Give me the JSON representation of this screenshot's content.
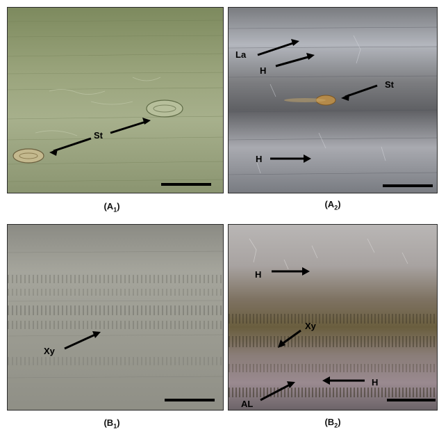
{
  "panels": {
    "A1": {
      "caption": {
        "letter": "A",
        "sub": "1"
      },
      "labels": {
        "st": "St"
      },
      "colors": {
        "base": "#8f9a72",
        "tint": "#a9b38a"
      }
    },
    "A2": {
      "caption": {
        "letter": "A",
        "sub": "2"
      },
      "labels": {
        "la": "La",
        "h1": "H",
        "st": "St",
        "h2": "H"
      },
      "colors": {
        "base": "#6f7176",
        "stoma": "#b48a4a"
      }
    },
    "B1": {
      "caption": {
        "letter": "B",
        "sub": "1"
      },
      "labels": {
        "xy": "Xy"
      },
      "colors": {
        "base": "#9a998f"
      }
    },
    "B2": {
      "caption": {
        "letter": "B",
        "sub": "2"
      },
      "labels": {
        "h1": "H",
        "xy": "Xy",
        "h2": "H",
        "al": "AL"
      },
      "colors": {
        "base": "#7c7468",
        "band": "#5d5230"
      }
    }
  }
}
